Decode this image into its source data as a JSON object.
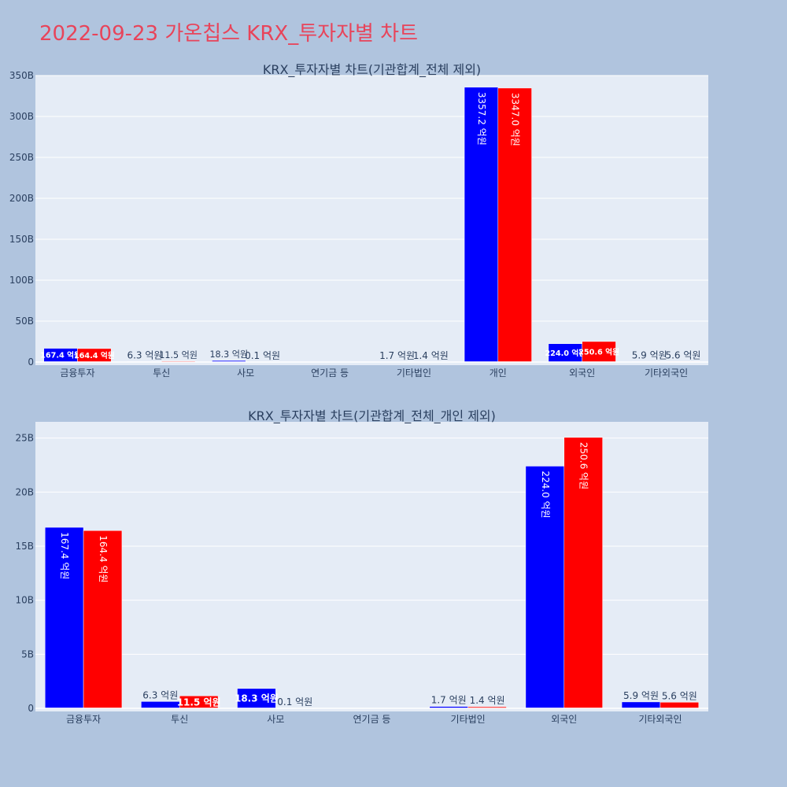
{
  "page": {
    "title": "2022-09-23 가온칩스 KRX_투자자별 차트",
    "colors": {
      "background": "#b0c4de",
      "plot_bg": "#e5ecf6",
      "title": "#e8445a",
      "buy": "#0000ff",
      "sell": "#ff0000"
    }
  },
  "chart_data": [
    {
      "type": "bar",
      "title": "KRX_투자자별 차트(기관합계_전체 제외)",
      "categories": [
        "금융투자",
        "투신",
        "사모",
        "연기금 등",
        "기타법인",
        "개인",
        "외국인",
        "기타외국인"
      ],
      "series": [
        {
          "values": [
            16.74,
            0.63,
            1.83,
            0,
            0.17,
            335.72,
            22.4,
            0.59
          ],
          "labels": [
            "167.4 억원",
            "6.3 억원",
            "18.3 억원",
            "",
            "1.7 억원",
            "3357.2 억원",
            "224.0 억원",
            "5.9 억원"
          ],
          "color": "#0000ff"
        },
        {
          "values": [
            16.44,
            1.15,
            0.01,
            0,
            0.14,
            334.7,
            25.06,
            0.56
          ],
          "labels": [
            "164.4 억원",
            "11.5 억원",
            "0.1 억원",
            "",
            "1.4 억원",
            "3347.0 억원",
            "250.6 억원",
            "5.6 억원"
          ],
          "color": "#ff0000"
        }
      ],
      "ylim": [
        0,
        350
      ],
      "yticks": [
        0,
        50,
        100,
        150,
        200,
        250,
        300,
        350
      ],
      "ytick_labels": [
        "0",
        "50B",
        "100B",
        "150B",
        "200B",
        "250B",
        "300B",
        "350B"
      ],
      "grid": true,
      "legend": "none"
    },
    {
      "type": "bar",
      "title": "KRX_투자자별 차트(기관합계_전체_개인 제외)",
      "categories": [
        "금융투자",
        "투신",
        "사모",
        "연기금 등",
        "기타법인",
        "외국인",
        "기타외국인"
      ],
      "series": [
        {
          "values": [
            16.74,
            0.63,
            1.83,
            0,
            0.17,
            22.4,
            0.59
          ],
          "labels": [
            "167.4 억원",
            "6.3 억원",
            "18.3 억원",
            "",
            "1.7 억원",
            "224.0 억원",
            "5.9 억원"
          ],
          "color": "#0000ff"
        },
        {
          "values": [
            16.44,
            1.15,
            0.01,
            0,
            0.14,
            25.06,
            0.56
          ],
          "labels": [
            "164.4 억원",
            "11.5 억원",
            "0.1 억원",
            "",
            "1.4 억원",
            "250.6 억원",
            "5.6 억원"
          ],
          "color": "#ff0000"
        }
      ],
      "ylim": [
        0,
        26.5
      ],
      "yticks": [
        0,
        5,
        10,
        15,
        20,
        25
      ],
      "ytick_labels": [
        "0",
        "5B",
        "10B",
        "15B",
        "20B",
        "25B"
      ],
      "grid": true,
      "legend": "none"
    }
  ]
}
